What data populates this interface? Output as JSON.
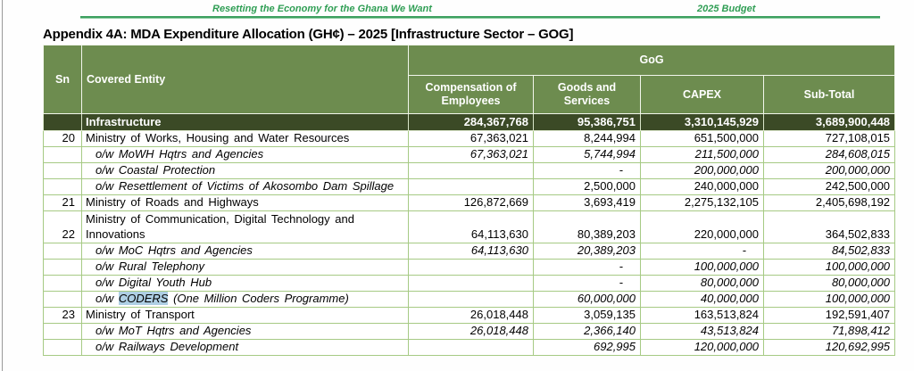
{
  "page": {
    "banner_left": "Resetting the Economy for the Ghana We Want",
    "banner_right": "2025 Budget",
    "title": "Appendix 4A: MDA Expenditure Allocation (GH¢) – 2025 [Infrastructure Sector – GOG]"
  },
  "colors": {
    "header_green": "#6d8c4f",
    "total_row_green": "#3b4a26",
    "grid_green": "#a6ca84",
    "accent_green": "#2f9e54",
    "highlight_blue": "#aecfe4"
  },
  "table": {
    "group_header": "GoG",
    "col_sn": "Sn",
    "col_entity": "Covered Entity",
    "sub_columns": [
      "Compensation of Employees",
      "Goods and Services",
      "CAPEX",
      "Sub-Total"
    ],
    "rows": [
      {
        "style": "total",
        "sn": "",
        "entity": "Infrastructure",
        "values": [
          "284,367,768",
          "95,386,751",
          "3,310,145,929",
          "3,689,900,448"
        ]
      },
      {
        "style": "ministry",
        "sn": "20",
        "entity": "Ministry of Works, Housing and Water Resources",
        "values": [
          "67,363,021",
          "8,244,994",
          "651,500,000",
          "727,108,015"
        ]
      },
      {
        "style": "ow",
        "sn": "",
        "entity": "o/w MoWH Hqtrs and Agencies",
        "num_italic": true,
        "values": [
          "67,363,021",
          "5,744,994",
          "211,500,000",
          "284,608,015"
        ]
      },
      {
        "style": "ow",
        "sn": "",
        "entity": "o/w Coastal Protection",
        "num_italic": true,
        "values": [
          "",
          "-",
          "200,000,000",
          "200,000,000"
        ]
      },
      {
        "style": "ow",
        "sn": "",
        "entity": "o/w Resettlement of Victims of Akosombo Dam Spillage",
        "num_italic": false,
        "values": [
          "",
          "2,500,000",
          "240,000,000",
          "242,500,000"
        ]
      },
      {
        "style": "ministry",
        "sn": "21",
        "entity": "Ministry of Roads and Highways",
        "values": [
          "126,872,669",
          "3,693,419",
          "2,275,132,105",
          "2,405,698,192"
        ]
      },
      {
        "style": "ministry",
        "sn": "22",
        "tall": true,
        "entity": "Ministry of Communication, Digital Technology and Innovations",
        "values": [
          "64,113,630",
          "80,389,203",
          "220,000,000",
          "364,502,833"
        ]
      },
      {
        "style": "ow",
        "sn": "",
        "entity": "o/w MoC Hqtrs and Agencies",
        "num_italic": true,
        "values": [
          "64,113,630",
          "20,389,203",
          "-",
          "84,502,833"
        ]
      },
      {
        "style": "ow",
        "sn": "",
        "entity": "o/w Rural Telephony",
        "num_italic": true,
        "values": [
          "",
          "-",
          "100,000,000",
          "100,000,000"
        ]
      },
      {
        "style": "ow",
        "sn": "",
        "entity": "o/w Digital Youth Hub",
        "num_italic": true,
        "values": [
          "",
          "-",
          "80,000,000",
          "80,000,000"
        ]
      },
      {
        "style": "ow",
        "sn": "",
        "entity_pre": "o/w ",
        "entity_highlight": "CODERS",
        "entity_post": " (One Million Coders Programme)",
        "num_italic": true,
        "values": [
          "",
          "60,000,000",
          "40,000,000",
          "100,000,000"
        ]
      },
      {
        "style": "ministry",
        "sn": "23",
        "entity": "Ministry of Transport",
        "values": [
          "26,018,448",
          "3,059,135",
          "163,513,824",
          "192,591,407"
        ]
      },
      {
        "style": "ow",
        "sn": "",
        "entity": "o/w MoT Hqtrs and Agencies",
        "num_italic": true,
        "values": [
          "26,018,448",
          "2,366,140",
          "43,513,824",
          "71,898,412"
        ]
      },
      {
        "style": "ow",
        "sn": "",
        "entity": "o/w Railways Development",
        "num_italic": true,
        "values": [
          "",
          "692,995",
          "120,000,000",
          "120,692,995"
        ]
      }
    ]
  }
}
